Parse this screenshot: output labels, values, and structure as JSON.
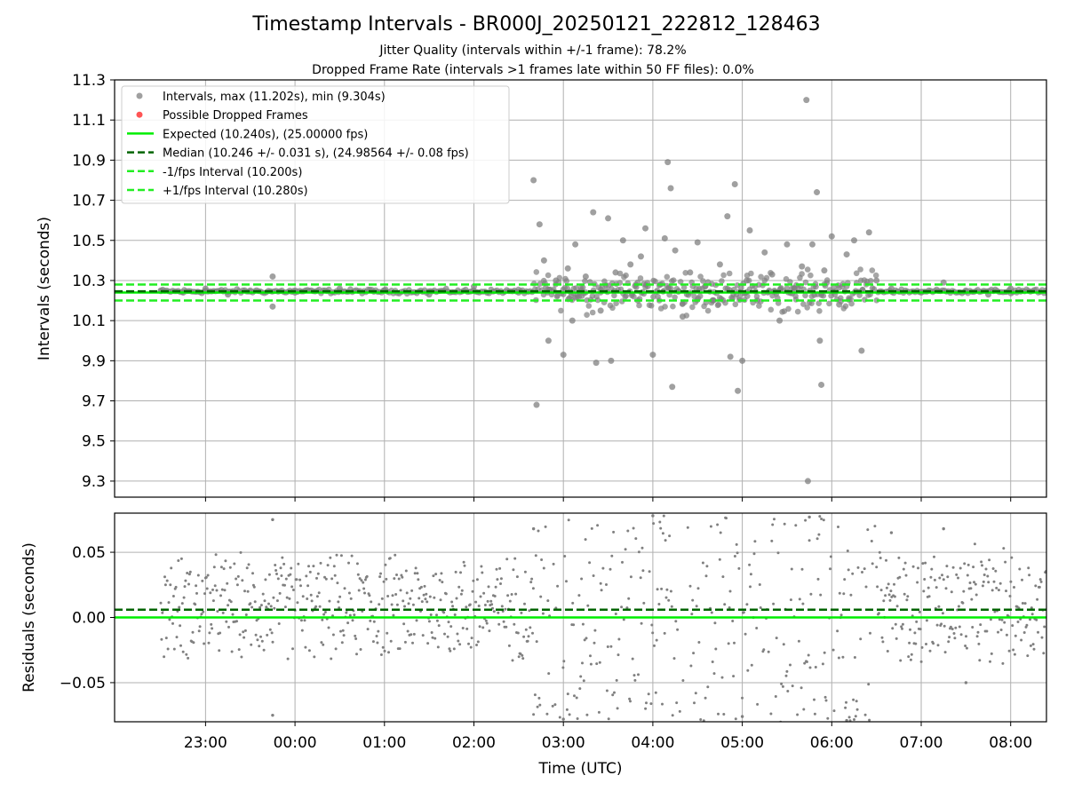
{
  "title": "Timestamp Intervals - BR000J_20250121_222812_128463",
  "subtitle_lines": [
    "Jitter Quality (intervals within +/-1 frame): 78.2%",
    "Dropped Frame Rate (intervals >1 frames late within 50 FF files): 0.0%"
  ],
  "colors": {
    "points": "#808080",
    "dropped": "#ff5555",
    "expected": "#00ee00",
    "median": "#006400",
    "fps_bounds": "#22ee22",
    "grid": "#b0b0b0"
  },
  "chart_data": [
    {
      "type": "scatter",
      "ylabel": "Intervals (seconds)",
      "xlabel": "",
      "ylim": [
        9.22,
        11.3
      ],
      "xlim": [
        "21:59",
        "08:24"
      ],
      "yticks": [
        "9.3",
        "9.5",
        "9.7",
        "9.9",
        "10.1",
        "10.3",
        "10.5",
        "10.7",
        "10.9",
        "11.1",
        "11.3"
      ],
      "grid": true,
      "legend_position": "top-left",
      "legend": [
        {
          "label": "Intervals, max (11.202s), min (9.304s)",
          "style": "point-gray"
        },
        {
          "label": "Possible Dropped Frames",
          "style": "point-red"
        },
        {
          "label": "Expected (10.240s), (25.00000 fps)",
          "style": "solid-green"
        },
        {
          "label": "Median (10.246 +/- 0.031 s), (24.98564 +/- 0.08 fps)",
          "style": "dashed-darkgreen"
        },
        {
          "label": "-1/fps Interval (10.200s)",
          "style": "dashed-green"
        },
        {
          "label": "+1/fps Interval (10.280s)",
          "style": "dashed-green"
        }
      ],
      "lines": {
        "expected": 10.24,
        "median": 10.246,
        "minus_fps": 10.2,
        "plus_fps": 10.28
      },
      "series": [
        {
          "name": "Intervals, max (11.202s), min (9.304s)",
          "points": [
            [
              "22:30",
              10.25
            ],
            [
              "22:45",
              10.24
            ],
            [
              "23:00",
              10.26
            ],
            [
              "23:15",
              10.23
            ],
            [
              "23:30",
              10.25
            ],
            [
              "23:45",
              10.32
            ],
            [
              "23:45",
              10.17
            ],
            [
              "00:00",
              10.24
            ],
            [
              "00:30",
              10.26
            ],
            [
              "01:00",
              10.25
            ],
            [
              "01:30",
              10.23
            ],
            [
              "02:00",
              10.27
            ],
            [
              "02:30",
              10.24
            ],
            [
              "02:40",
              10.8
            ],
            [
              "02:42",
              9.68
            ],
            [
              "02:44",
              10.58
            ],
            [
              "02:47",
              10.4
            ],
            [
              "02:50",
              10.0
            ],
            [
              "02:55",
              10.3
            ],
            [
              "03:00",
              9.93
            ],
            [
              "03:03",
              10.36
            ],
            [
              "03:06",
              10.1
            ],
            [
              "03:08",
              10.48
            ],
            [
              "03:12",
              10.25
            ],
            [
              "03:15",
              10.32
            ],
            [
              "03:20",
              10.64
            ],
            [
              "03:22",
              9.89
            ],
            [
              "03:25",
              10.15
            ],
            [
              "03:30",
              10.61
            ],
            [
              "03:32",
              9.9
            ],
            [
              "03:35",
              10.34
            ],
            [
              "03:40",
              10.5
            ],
            [
              "03:45",
              10.38
            ],
            [
              "03:50",
              10.2
            ],
            [
              "03:52",
              10.42
            ],
            [
              "03:55",
              10.56
            ],
            [
              "04:00",
              9.93
            ],
            [
              "04:05",
              10.28
            ],
            [
              "04:08",
              10.51
            ],
            [
              "04:10",
              10.89
            ],
            [
              "04:12",
              10.76
            ],
            [
              "04:13",
              9.77
            ],
            [
              "04:15",
              10.45
            ],
            [
              "04:20",
              10.12
            ],
            [
              "04:25",
              10.34
            ],
            [
              "04:30",
              10.49
            ],
            [
              "04:35",
              10.27
            ],
            [
              "04:40",
              10.2
            ],
            [
              "04:45",
              10.38
            ],
            [
              "04:50",
              10.62
            ],
            [
              "04:52",
              9.92
            ],
            [
              "04:55",
              10.78
            ],
            [
              "04:57",
              9.75
            ],
            [
              "05:00",
              9.9
            ],
            [
              "05:03",
              10.3
            ],
            [
              "05:05",
              10.55
            ],
            [
              "05:10",
              10.2
            ],
            [
              "05:15",
              10.44
            ],
            [
              "05:20",
              10.33
            ],
            [
              "05:25",
              10.1
            ],
            [
              "05:30",
              10.48
            ],
            [
              "05:35",
              10.26
            ],
            [
              "05:40",
              10.37
            ],
            [
              "05:43",
              11.2
            ],
            [
              "05:44",
              9.3
            ],
            [
              "05:47",
              10.48
            ],
            [
              "05:50",
              10.74
            ],
            [
              "05:52",
              10.0
            ],
            [
              "05:53",
              9.78
            ],
            [
              "05:55",
              10.35
            ],
            [
              "06:00",
              10.52
            ],
            [
              "06:05",
              10.18
            ],
            [
              "06:10",
              10.43
            ],
            [
              "06:15",
              10.5
            ],
            [
              "06:20",
              9.95
            ],
            [
              "06:25",
              10.54
            ],
            [
              "06:30",
              10.3
            ],
            [
              "06:40",
              10.26
            ],
            [
              "07:00",
              10.24
            ],
            [
              "07:15",
              10.29
            ],
            [
              "07:30",
              10.25
            ],
            [
              "07:45",
              10.23
            ],
            [
              "08:00",
              10.26
            ]
          ]
        }
      ]
    },
    {
      "type": "scatter",
      "ylabel": "Residuals (seconds)",
      "xlabel": "Time (UTC)",
      "ylim": [
        -0.08,
        0.08
      ],
      "xlim": [
        "21:59",
        "08:24"
      ],
      "yticks": [
        "−0.05",
        "0.00",
        "0.05"
      ],
      "xticks": [
        "23:00",
        "00:00",
        "01:00",
        "02:00",
        "03:00",
        "04:00",
        "05:00",
        "06:00",
        "07:00",
        "08:00"
      ],
      "grid": true,
      "lines": {
        "zero": 0.0,
        "median_offset": 0.006
      },
      "series": [
        {
          "name": "Residuals",
          "segments": [
            {
              "from": "22:30",
              "to": "02:40",
              "center": 0.008,
              "spread": 0.045
            },
            {
              "from": "02:40",
              "to": "06:30",
              "center": 0.0,
              "spread": 0.16
            },
            {
              "from": "06:30",
              "to": "08:24",
              "center": 0.008,
              "spread": 0.05
            }
          ],
          "points": [
            [
              "23:45",
              0.075
            ],
            [
              "23:45",
              -0.075
            ],
            [
              "02:40",
              0.068
            ],
            [
              "03:00",
              -0.078
            ],
            [
              "04:00",
              0.078
            ],
            [
              "05:00",
              -0.076
            ],
            [
              "05:45",
              0.077
            ],
            [
              "06:10",
              -0.079
            ],
            [
              "06:40",
              0.065
            ],
            [
              "07:15",
              0.068
            ],
            [
              "07:30",
              -0.05
            ]
          ]
        }
      ]
    }
  ]
}
